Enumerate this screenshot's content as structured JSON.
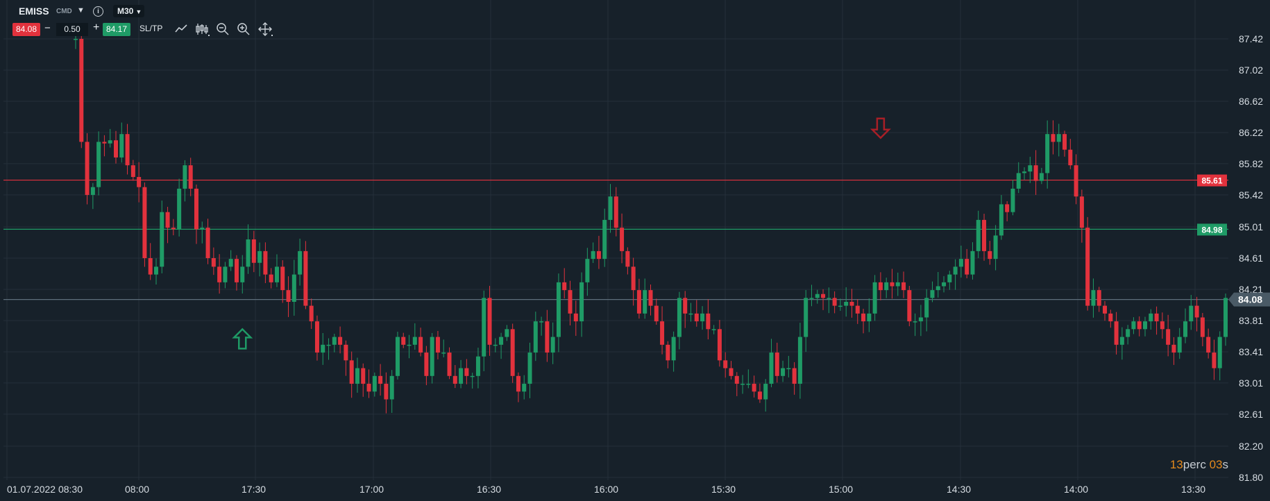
{
  "toolbar": {
    "symbol": "EMISS",
    "symbol_tag": "CMD",
    "timeframe": "M30",
    "bid": "84.08",
    "lot_size": "0.50",
    "ask": "84.17",
    "sltp_label": "SL/TP",
    "minus_label": "−",
    "plus_label": "+",
    "tools": [
      "line-chart-icon",
      "candlestick-icon",
      "zoom-out-icon",
      "zoom-in-icon",
      "move-icon"
    ]
  },
  "countdown": {
    "value1": "13",
    "word1": "perc",
    "value2": "03",
    "word2": "s"
  },
  "colors": {
    "background": "#17212a",
    "up": "#1f9b66",
    "down": "#e2323d",
    "grid": "#24303a",
    "text": "#d7dde3",
    "timer": "#e58a1c"
  },
  "chart_data": {
    "type": "candlestick",
    "ylim": [
      81.8,
      87.62
    ],
    "y_ticks": [
      "87.42",
      "87.02",
      "86.62",
      "86.22",
      "85.82",
      "85.42",
      "85.01",
      "84.61",
      "84.21",
      "83.81",
      "83.41",
      "83.01",
      "82.61",
      "82.20",
      "81.80"
    ],
    "x_ticks": [
      "01.07.2022 08:30",
      "08:00",
      "17:30",
      "17:00",
      "16:30",
      "16:00",
      "15:30",
      "15:00",
      "14:30",
      "14:00",
      "13:30"
    ],
    "grid": true,
    "horizontal_lines": [
      {
        "value": 85.61,
        "label": "85.61",
        "color": "#e2323d"
      },
      {
        "value": 84.98,
        "label": "84.98",
        "color": "#1f9b66"
      },
      {
        "value": 84.08,
        "label": "84.08",
        "color": "#5e6f7c",
        "current": true
      }
    ],
    "markers": [
      {
        "type": "buy-arrow",
        "index": 29,
        "price": 83.7
      },
      {
        "type": "sell-arrow",
        "index": 140,
        "price": 86.4
      }
    ],
    "closes": [
      87.42,
      86.1,
      85.42,
      85.52,
      86.1,
      86.08,
      86.12,
      85.9,
      86.2,
      85.8,
      85.65,
      85.52,
      84.61,
      84.4,
      84.5,
      85.2,
      85.0,
      84.98,
      85.5,
      85.8,
      85.5,
      84.98,
      85.0,
      84.61,
      84.5,
      84.3,
      84.5,
      84.6,
      84.3,
      84.5,
      84.85,
      84.55,
      84.7,
      84.4,
      84.3,
      84.5,
      84.2,
      84.05,
      84.4,
      84.7,
      84.0,
      83.8,
      83.4,
      83.5,
      83.5,
      83.6,
      83.5,
      83.3,
      83.0,
      83.2,
      83.0,
      82.9,
      83.1,
      83.0,
      82.8,
      83.1,
      83.6,
      83.5,
      83.5,
      83.6,
      83.4,
      83.1,
      83.6,
      83.4,
      83.4,
      83.1,
      83.0,
      83.2,
      83.1,
      83.1,
      83.35,
      84.1,
      83.5,
      83.5,
      83.6,
      83.7,
      83.1,
      82.9,
      83.0,
      83.4,
      83.8,
      83.8,
      83.4,
      83.6,
      84.3,
      84.2,
      83.9,
      83.8,
      84.3,
      84.6,
      84.7,
      84.6,
      85.1,
      85.4,
      85.0,
      84.7,
      84.5,
      84.2,
      83.9,
      84.2,
      84.0,
      83.8,
      83.5,
      83.3,
      83.6,
      84.1,
      83.9,
      83.9,
      83.8,
      83.9,
      83.7,
      83.7,
      83.3,
      83.2,
      83.1,
      83.0,
      83.0,
      83.0,
      82.9,
      82.8,
      83.0,
      83.4,
      83.1,
      83.2,
      83.2,
      83.0,
      83.6,
      84.1,
      84.1,
      84.15,
      84.1,
      84.1,
      84.0,
      84.0,
      84.05,
      84.0,
      83.9,
      83.8,
      83.9,
      84.3,
      84.2,
      84.3,
      84.25,
      84.3,
      84.2,
      83.8,
      83.8,
      83.85,
      84.1,
      84.2,
      84.25,
      84.3,
      84.4,
      84.5,
      84.6,
      84.4,
      84.7,
      85.1,
      84.7,
      84.6,
      84.9,
      85.3,
      85.2,
      85.5,
      85.7,
      85.72,
      85.8,
      85.6,
      85.7,
      86.2,
      86.1,
      86.2,
      86.0,
      85.8,
      85.4,
      85.0,
      84.0,
      84.2,
      84.0,
      83.9,
      83.8,
      83.5,
      83.6,
      83.7,
      83.8,
      83.7,
      83.8,
      83.9,
      83.8,
      83.7,
      83.5,
      83.4,
      83.6,
      83.8,
      84.0,
      83.85,
      83.6,
      83.4,
      83.2,
      83.6,
      84.1
    ]
  }
}
